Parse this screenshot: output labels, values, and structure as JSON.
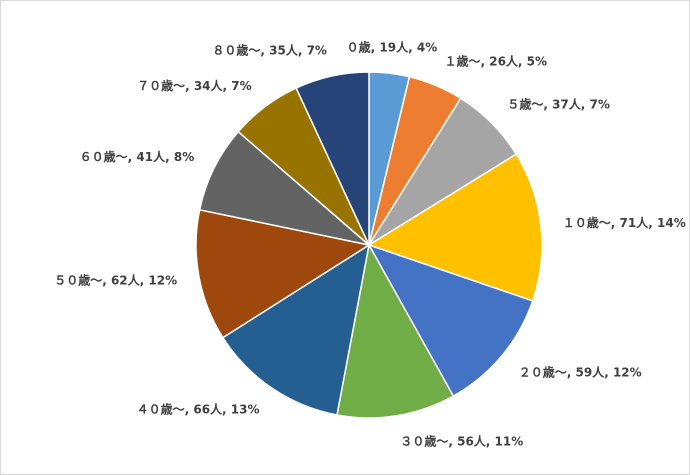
{
  "chart_data": {
    "type": "pie",
    "categories": [
      "０歳",
      "１歳～",
      "５歳～",
      "１０歳～",
      "２０歳～",
      "３０歳～",
      "４０歳～",
      "５０歳～",
      "６０歳～",
      "７０歳～",
      "８０歳～"
    ],
    "values": [
      19,
      26,
      37,
      71,
      59,
      56,
      66,
      62,
      41,
      34,
      35
    ],
    "value_labels": [
      "19人",
      "26人",
      "37人",
      "71人",
      "59人",
      "56人",
      "66人",
      "62人",
      "41人",
      "34人",
      "35人"
    ],
    "percents": [
      4,
      5,
      7,
      14,
      12,
      11,
      13,
      12,
      8,
      7,
      7
    ],
    "percent_labels": [
      "4%",
      "5%",
      "7%",
      "14%",
      "12%",
      "11%",
      "13%",
      "12%",
      "8%",
      "7%",
      "7%"
    ],
    "separator": ", ",
    "colors": [
      "#5b9bd5",
      "#ed7d31",
      "#a5a5a5",
      "#ffc000",
      "#4472c4",
      "#70ad47",
      "#255e91",
      "#9e480e",
      "#636363",
      "#997300",
      "#264478"
    ]
  }
}
